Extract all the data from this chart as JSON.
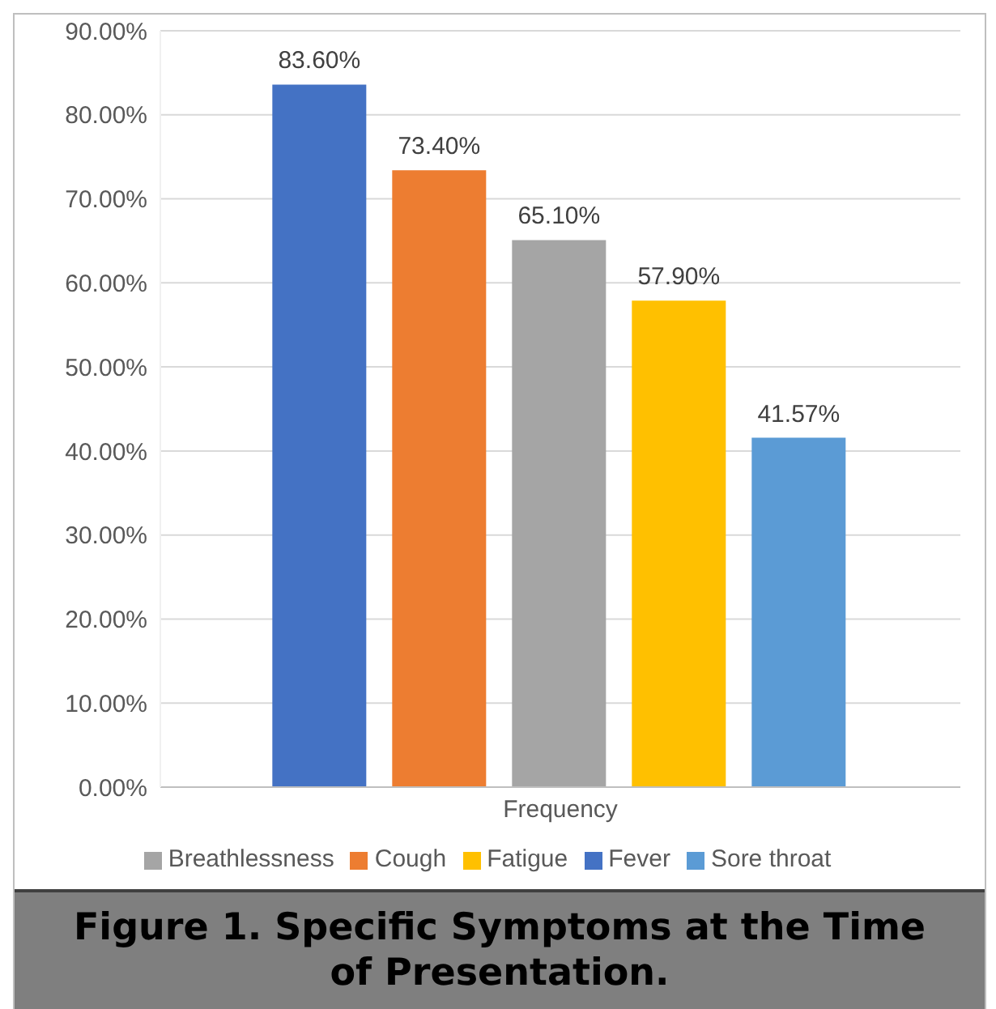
{
  "chart_data": {
    "type": "bar",
    "title": "Figure 1. Specific Symptoms at the Time of Presentation.",
    "categories": [
      "Frequency"
    ],
    "series": [
      {
        "name": "Fever",
        "color": "#4472c4",
        "values": [
          83.6
        ],
        "value_labels": [
          "83.60%"
        ]
      },
      {
        "name": "Cough",
        "color": "#ed7d31",
        "values": [
          73.4
        ],
        "value_labels": [
          "73.40%"
        ]
      },
      {
        "name": "Breathlessness",
        "color": "#a5a5a5",
        "values": [
          65.1
        ],
        "value_labels": [
          "65.10%"
        ]
      },
      {
        "name": "Fatigue",
        "color": "#ffc000",
        "values": [
          57.9
        ],
        "value_labels": [
          "57.90%"
        ]
      },
      {
        "name": "Sore throat",
        "color": "#5b9bd5",
        "values": [
          41.57
        ],
        "value_labels": [
          "41.57%"
        ]
      }
    ],
    "ylim": [
      0,
      90
    ],
    "yticks": [
      {
        "value": 0,
        "label": "0.00%"
      },
      {
        "value": 10,
        "label": "10.00%"
      },
      {
        "value": 20,
        "label": "20.00%"
      },
      {
        "value": 30,
        "label": "30.00%"
      },
      {
        "value": 40,
        "label": "40.00%"
      },
      {
        "value": 50,
        "label": "50.00%"
      },
      {
        "value": 60,
        "label": "60.00%"
      },
      {
        "value": 70,
        "label": "70.00%"
      },
      {
        "value": 80,
        "label": "80.00%"
      },
      {
        "value": 90,
        "label": "90.00%"
      }
    ],
    "grid": "y",
    "legend": "bottom"
  }
}
